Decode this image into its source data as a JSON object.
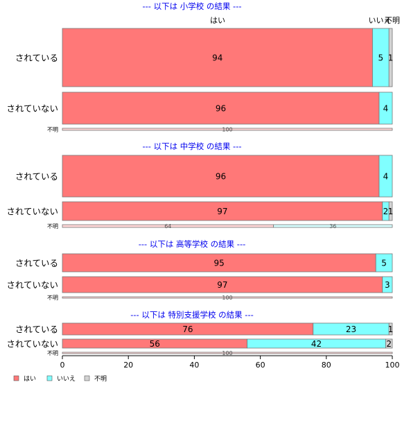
{
  "chart_data": {
    "type": "bar",
    "orientation": "horizontal",
    "stacked": true,
    "xlim": [
      0,
      100
    ],
    "xticks": [
      0,
      20,
      40,
      60,
      80,
      100
    ],
    "legend_position": "bottom-left",
    "colors": {
      "はい": "#ff7878",
      "いいえ": "#80ffff",
      "不明": "#d3d3d3"
    },
    "categories": [
      "はい",
      "いいえ",
      "不明"
    ],
    "header_labels": [
      "はい",
      "いいえ",
      "不明"
    ],
    "panels": [
      {
        "title": "--- 以下は 小学校 の結果 ---",
        "rows": [
          {
            "label": "されている",
            "values": [
              94,
              5,
              1
            ]
          },
          {
            "label": "されていない",
            "values": [
              96,
              4,
              0
            ]
          },
          {
            "label": "不明",
            "values": [
              100,
              0,
              0
            ]
          }
        ]
      },
      {
        "title": "--- 以下は 中学校 の結果 ---",
        "rows": [
          {
            "label": "されている",
            "values": [
              96,
              4,
              0
            ]
          },
          {
            "label": "されていない",
            "values": [
              97,
              2,
              1
            ]
          },
          {
            "label": "不明",
            "values": [
              64,
              36,
              0
            ]
          }
        ]
      },
      {
        "title": "--- 以下は 高等学校 の結果 ---",
        "rows": [
          {
            "label": "されている",
            "values": [
              95,
              5,
              0
            ]
          },
          {
            "label": "されていない",
            "values": [
              97,
              3,
              0
            ]
          },
          {
            "label": "不明",
            "values": [
              100,
              0,
              0
            ]
          }
        ]
      },
      {
        "title": "--- 以下は 特別支援学校 の結果 ---",
        "rows": [
          {
            "label": "されている",
            "values": [
              76,
              23,
              1
            ]
          },
          {
            "label": "されていない",
            "values": [
              56,
              42,
              2
            ]
          },
          {
            "label": "不明",
            "values": [
              100,
              0,
              0
            ]
          }
        ]
      }
    ]
  }
}
